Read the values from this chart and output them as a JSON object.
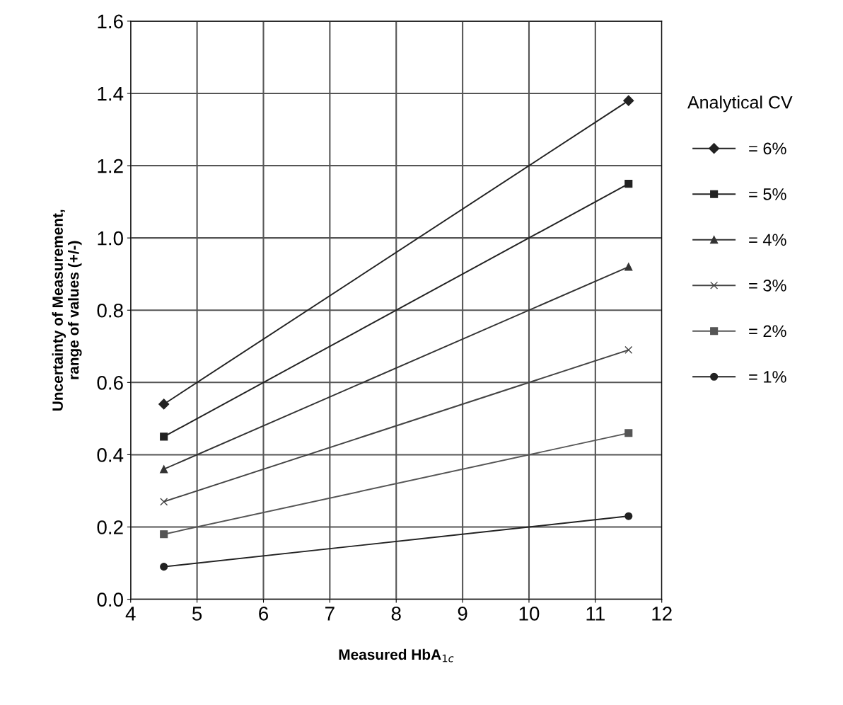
{
  "chart_data": {
    "type": "line",
    "xlabel": "Measured HbA$_{1c}$",
    "ylabel": "Uncertainty of Measurement,\nrange of values (+/-)",
    "legend_title": "Analytical CV",
    "x": [
      4.5,
      11.5
    ],
    "series": [
      {
        "name": "= 6%",
        "color": "#222222",
        "marker": "diamond",
        "values": [
          0.54,
          1.38
        ]
      },
      {
        "name": "= 5%",
        "color": "#222222",
        "marker": "square",
        "values": [
          0.45,
          1.15
        ]
      },
      {
        "name": "= 4%",
        "color": "#333333",
        "marker": "triangle",
        "values": [
          0.36,
          0.92
        ]
      },
      {
        "name": "= 3%",
        "color": "#444444",
        "marker": "cross",
        "values": [
          0.27,
          0.69
        ]
      },
      {
        "name": "= 2%",
        "color": "#555555",
        "marker": "square",
        "values": [
          0.18,
          0.46
        ]
      },
      {
        "name": "= 1%",
        "color": "#222222",
        "marker": "circle",
        "values": [
          0.09,
          0.23
        ]
      }
    ],
    "xlim": [
      4,
      12
    ],
    "xticks": [
      4,
      5,
      6,
      7,
      8,
      9,
      10,
      11,
      12
    ],
    "ylim": [
      0.0,
      1.6
    ],
    "yticks": [
      {
        "value": 0.0,
        "label": "0.0"
      },
      {
        "value": 0.2,
        "label": "0.2"
      },
      {
        "value": 0.4,
        "label": "0.4"
      },
      {
        "value": 0.6,
        "label": "0.6"
      },
      {
        "value": 0.8,
        "label": "0.8"
      },
      {
        "value": 1.0,
        "label": "1.0"
      },
      {
        "value": 1.2,
        "label": "1.2"
      },
      {
        "value": 1.4,
        "label": "1.4"
      },
      {
        "value": 1.6,
        "label": "1.6"
      }
    ],
    "grid": true,
    "legend": "right",
    "line_style": "solid"
  }
}
